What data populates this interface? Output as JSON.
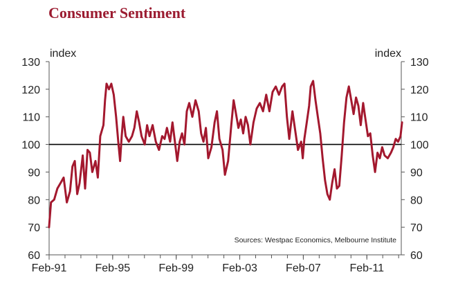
{
  "chart_data": {
    "type": "line",
    "title": "Consumer Sentiment",
    "ylabel_left": "index",
    "ylabel_right": "index",
    "source": "Sources: Westpac Economics, Melbourne Institute",
    "ylim": [
      60,
      130
    ],
    "yticks": [
      60,
      70,
      80,
      90,
      100,
      110,
      120,
      130
    ],
    "x_start": "Feb-91",
    "x_end": "Apr-13",
    "xticks": [
      "Feb-91",
      "Feb-95",
      "Feb-99",
      "Feb-03",
      "Feb-07",
      "Feb-11"
    ],
    "reference_line": 100,
    "grid": false,
    "color": "#a3182e",
    "series": [
      {
        "values": [
          [
            1991.08,
            70
          ],
          [
            1991.2,
            79
          ],
          [
            1991.4,
            80
          ],
          [
            1991.6,
            84
          ],
          [
            1991.8,
            86
          ],
          [
            1992.0,
            88
          ],
          [
            1992.2,
            79
          ],
          [
            1992.4,
            83
          ],
          [
            1992.55,
            92
          ],
          [
            1992.7,
            94
          ],
          [
            1992.85,
            82
          ],
          [
            1993.0,
            86
          ],
          [
            1993.2,
            96
          ],
          [
            1993.35,
            84
          ],
          [
            1993.5,
            98
          ],
          [
            1993.65,
            97
          ],
          [
            1993.8,
            90
          ],
          [
            1994.0,
            94
          ],
          [
            1994.15,
            88
          ],
          [
            1994.3,
            103
          ],
          [
            1994.5,
            107
          ],
          [
            1994.6,
            116
          ],
          [
            1994.7,
            122
          ],
          [
            1994.85,
            120
          ],
          [
            1995.0,
            122
          ],
          [
            1995.15,
            118
          ],
          [
            1995.3,
            110
          ],
          [
            1995.45,
            100
          ],
          [
            1995.55,
            94
          ],
          [
            1995.65,
            103
          ],
          [
            1995.75,
            110
          ],
          [
            1995.9,
            103
          ],
          [
            1996.1,
            101
          ],
          [
            1996.3,
            103
          ],
          [
            1996.45,
            106
          ],
          [
            1996.6,
            112
          ],
          [
            1996.75,
            108
          ],
          [
            1996.9,
            103
          ],
          [
            1997.1,
            100
          ],
          [
            1997.25,
            107
          ],
          [
            1997.4,
            103
          ],
          [
            1997.6,
            107
          ],
          [
            1997.8,
            101
          ],
          [
            1998.0,
            98
          ],
          [
            1998.2,
            103
          ],
          [
            1998.35,
            102
          ],
          [
            1998.5,
            106
          ],
          [
            1998.7,
            101
          ],
          [
            1998.85,
            108
          ],
          [
            1999.0,
            101
          ],
          [
            1999.15,
            94
          ],
          [
            1999.3,
            101
          ],
          [
            1999.45,
            104
          ],
          [
            1999.6,
            100
          ],
          [
            1999.75,
            112
          ],
          [
            1999.9,
            115
          ],
          [
            2000.1,
            110
          ],
          [
            2000.3,
            116
          ],
          [
            2000.5,
            112
          ],
          [
            2000.65,
            104
          ],
          [
            2000.8,
            101
          ],
          [
            2000.95,
            106
          ],
          [
            2001.1,
            95
          ],
          [
            2001.3,
            99
          ],
          [
            2001.5,
            108
          ],
          [
            2001.65,
            112
          ],
          [
            2001.8,
            102
          ],
          [
            2002.0,
            98
          ],
          [
            2002.15,
            89
          ],
          [
            2002.35,
            94
          ],
          [
            2002.55,
            107
          ],
          [
            2002.7,
            116
          ],
          [
            2002.85,
            111
          ],
          [
            2003.0,
            106
          ],
          [
            2003.15,
            109
          ],
          [
            2003.3,
            104
          ],
          [
            2003.45,
            110
          ],
          [
            2003.6,
            107
          ],
          [
            2003.75,
            100
          ],
          [
            2003.95,
            108
          ],
          [
            2004.15,
            113
          ],
          [
            2004.35,
            115
          ],
          [
            2004.55,
            112
          ],
          [
            2004.75,
            118
          ],
          [
            2004.95,
            112
          ],
          [
            2005.15,
            119
          ],
          [
            2005.35,
            121
          ],
          [
            2005.55,
            118
          ],
          [
            2005.75,
            121
          ],
          [
            2005.9,
            122
          ],
          [
            2006.05,
            110
          ],
          [
            2006.2,
            102
          ],
          [
            2006.4,
            112
          ],
          [
            2006.6,
            104
          ],
          [
            2006.75,
            98
          ],
          [
            2006.95,
            101
          ],
          [
            2007.05,
            95
          ],
          [
            2007.15,
            102
          ],
          [
            2007.3,
            108
          ],
          [
            2007.45,
            114
          ],
          [
            2007.55,
            121
          ],
          [
            2007.7,
            123
          ],
          [
            2007.85,
            116
          ],
          [
            2008.0,
            110
          ],
          [
            2008.15,
            104
          ],
          [
            2008.3,
            95
          ],
          [
            2008.45,
            87
          ],
          [
            2008.6,
            82
          ],
          [
            2008.75,
            80
          ],
          [
            2008.9,
            86
          ],
          [
            2009.05,
            91
          ],
          [
            2009.2,
            84
          ],
          [
            2009.35,
            85
          ],
          [
            2009.5,
            96
          ],
          [
            2009.65,
            108
          ],
          [
            2009.8,
            117
          ],
          [
            2009.95,
            121
          ],
          [
            2010.1,
            116
          ],
          [
            2010.25,
            111
          ],
          [
            2010.4,
            117
          ],
          [
            2010.55,
            114
          ],
          [
            2010.7,
            107
          ],
          [
            2010.85,
            115
          ],
          [
            2011.0,
            109
          ],
          [
            2011.15,
            103
          ],
          [
            2011.3,
            104
          ],
          [
            2011.45,
            96
          ],
          [
            2011.6,
            90
          ],
          [
            2011.75,
            97
          ],
          [
            2011.9,
            95
          ],
          [
            2012.05,
            99
          ],
          [
            2012.2,
            96
          ],
          [
            2012.4,
            95
          ],
          [
            2012.6,
            97
          ],
          [
            2012.75,
            99
          ],
          [
            2012.9,
            102
          ],
          [
            2013.05,
            101
          ],
          [
            2013.2,
            103
          ],
          [
            2013.3,
            108
          ]
        ]
      }
    ]
  }
}
